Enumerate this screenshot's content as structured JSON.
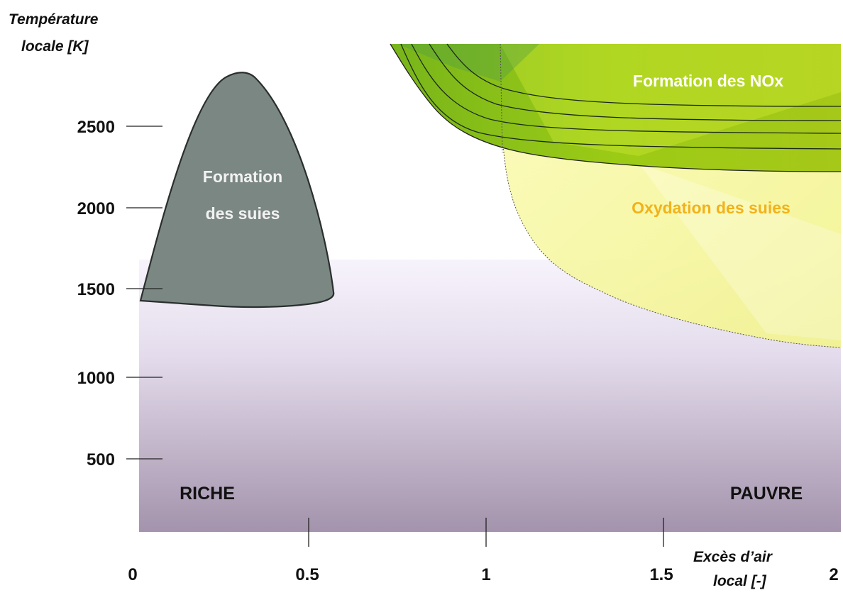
{
  "diagram": {
    "y_axis_title_line1": "Température",
    "y_axis_title_line2": "locale [K]",
    "x_axis_title_line1": "Excès d’air",
    "x_axis_title_line2": "local [-]",
    "y_ticks": [
      "2500",
      "2000",
      "1500",
      "1000",
      "500"
    ],
    "x_ticks": [
      "0",
      "0.5",
      "1",
      "1.5",
      "2"
    ],
    "soot_formation_line1": "Formation",
    "soot_formation_line2": "des suies",
    "nox_formation": "Formation des NOx",
    "soot_oxidation": "Oxydation des suies",
    "rich_label": "RICHE",
    "lean_label": "PAUVRE",
    "colors": {
      "soot_zone": "#7b8783",
      "nox_zone": "#8cc21f",
      "oxidation_zone": "#f4f59a",
      "oxidation_text": "#f2b21a",
      "background_low": "#a696ad",
      "background_high": "#f6f2fb"
    }
  }
}
